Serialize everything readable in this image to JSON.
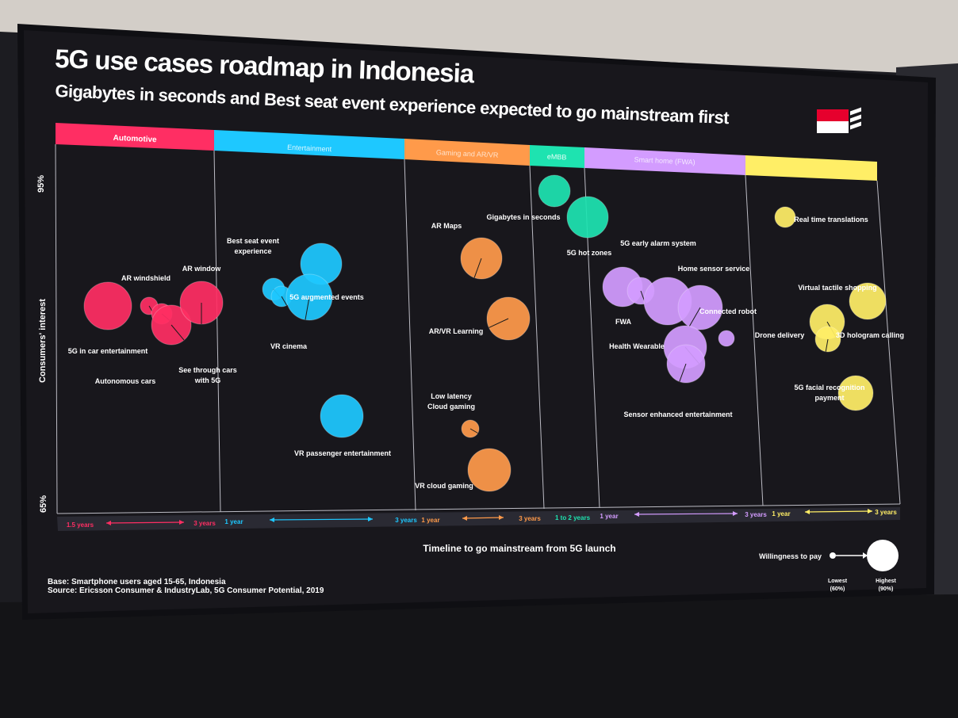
{
  "slide": {
    "title": "5G use cases roadmap in Indonesia",
    "subtitle": "Gigabytes in seconds and Best seat event experience expected to go mainstream first",
    "base": "Base: Smartphone users aged 15-65, Indonesia",
    "source": "Source: Ericsson Consumer & IndustryLab, 5G Consumer Potential, 2019",
    "x_axis_label": "Timeline to go mainstream from 5G launch",
    "y_axis_label": "Consumers' interest",
    "y_top": "95%",
    "y_bottom": "65%",
    "legend": {
      "label": "Willingness to pay",
      "lowest": "Lowest",
      "lowest_value": "(60%)",
      "highest": "Highest",
      "highest_value": "(90%)"
    },
    "colors": {
      "automotive": "#ff2e63",
      "entertainment": "#1ec8ff",
      "gaming": "#ff9a4a",
      "embb": "#1ee3b0",
      "smart_home": "#d39cff",
      "other": "#ffee66"
    }
  },
  "chart_data": {
    "type": "scatter",
    "xlabel": "Timeline to go mainstream from 5G launch",
    "ylabel": "Consumers' interest",
    "ylim": [
      "65%",
      "95%"
    ],
    "categories": [
      {
        "name": "Automotive",
        "color": "#ff2e63",
        "timeline_start": "1.5 years",
        "timeline_end": "3 years"
      },
      {
        "name": "Entertainment",
        "color": "#1ec8ff",
        "timeline_start": "1 year",
        "timeline_end": "3 years"
      },
      {
        "name": "Gaming and AR/VR",
        "color": "#ff9a4a",
        "timeline_start": "1 year",
        "timeline_end": "3 years"
      },
      {
        "name": "eMBB",
        "color": "#1ee3b0",
        "timeline_start": "1 to 2 years",
        "timeline_end": ""
      },
      {
        "name": "Smart home (FWA)",
        "color": "#d39cff",
        "timeline_start": "1 year",
        "timeline_end": "3 years"
      },
      {
        "name": "",
        "color": "#ffee66",
        "timeline_start": "1 year",
        "timeline_end": "3 years"
      }
    ],
    "labels": [
      "AR windshield",
      "AR window",
      "5G in car entertainment",
      "Autonomous cars",
      "See through cars with 5G",
      "Best seat event experience",
      "5G augmented events",
      "VR cinema",
      "VR passenger entertainment",
      "AR Maps",
      "AR/VR Learning",
      "Low latency Cloud gaming",
      "VR cloud gaming",
      "Gigabytes in seconds",
      "5G hot zones",
      "5G early alarm system",
      "Home sensor service",
      "Connected robot",
      "FWA",
      "Health Wearable",
      "Sensor enhanced entertainment",
      "Real time translations",
      "Virtual tactile shopping",
      "Drone delivery",
      "3D hologram calling",
      "5G facial recognition payment"
    ]
  }
}
